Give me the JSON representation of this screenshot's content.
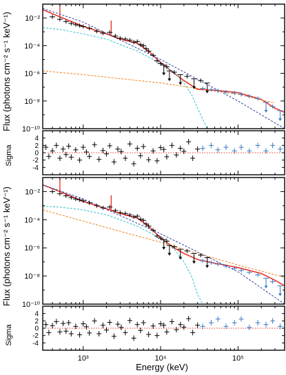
{
  "figure": {
    "xlabel": "Energy (keV)",
    "ylabel_flux": "Flux (photons cm⁻² s⁻¹ keV⁻¹)",
    "ylabel_sigma": "Sigma",
    "x_tick_labels": [
      "10³",
      "10⁴",
      "10⁵"
    ],
    "flux_tick_labels": [
      "10⁻²",
      "10⁻⁴",
      "10⁻⁶",
      "10⁻⁸",
      "10⁻¹⁰"
    ],
    "sigma_tick_labels": [
      "4",
      "2",
      "0",
      "-2",
      "-4"
    ]
  },
  "colors": {
    "total_model": "#e8332a",
    "data_black": "#000000",
    "data_blue": "#3a78c2",
    "cyan_component": "#2bbfcf",
    "blue_component": "#2d3fa3",
    "orange_component": "#f07f1a",
    "zero_line": "#e8332a"
  },
  "chart_data": [
    {
      "type": "line",
      "panel": "top",
      "x_scale": "log",
      "y_scale": "log",
      "xlim": [
        300,
        400000
      ],
      "ylim": [
        1e-10,
        0.1
      ],
      "grid": false,
      "series": [
        {
          "role": "data",
          "color": "black",
          "x": [
            400,
            500,
            600,
            700,
            800,
            900,
            1000,
            1200,
            1500,
            1800,
            2200,
            2600,
            3000,
            3500,
            4000,
            4500,
            5000,
            5500,
            6000,
            6500,
            7000,
            8000,
            9000,
            10000,
            11000,
            12000,
            13000,
            15000,
            18000,
            22000,
            27000,
            33000,
            40000
          ],
          "y": [
            0.012,
            0.008,
            0.0055,
            0.004,
            0.0033,
            0.0028,
            0.0024,
            0.0018,
            0.0011,
            0.0008,
            0.0009,
            0.0005,
            0.00035,
            0.0003,
            0.00025,
            0.00018,
            0.0002,
            0.00012,
            0.0001,
            6e-05,
            4e-05,
            2e-05,
            8e-06,
            5e-06,
            4e-06,
            3e-06,
            1.5e-06,
            1.2e-06,
            8e-07,
            6e-07,
            4e-07,
            3e-07,
            2e-07
          ],
          "upper_limit_from_x": 10000
        },
        {
          "role": "data",
          "color": "blue",
          "x": [
            35000,
            45000,
            55000,
            70000,
            90000,
            110000,
            140000,
            180000,
            230000,
            280000,
            350000
          ],
          "y": [
            8e-08,
            6.5e-08,
            5.5e-08,
            4.5e-08,
            3.8e-08,
            3e-08,
            2.2e-08,
            1.5e-08,
            8e-09,
            4e-09,
            2e-09
          ],
          "upper_limits_at_x": [
            230000,
            350000
          ]
        },
        {
          "role": "total model",
          "color": "red",
          "x": [
            300,
            500,
            1000,
            2000,
            3000,
            5000,
            7000,
            10000,
            15000,
            20000,
            30000,
            50000,
            100000,
            200000,
            300000,
            400000
          ],
          "y": [
            0.04,
            0.012,
            0.0025,
            0.0007,
            0.0003,
            0.00015,
            4e-05,
            6e-06,
            1e-06,
            3e-07,
            7e-08,
            6e-08,
            4e-08,
            1.3e-08,
            3e-09,
            1.5e-09
          ],
          "emission_lines_at_x": [
            500,
            2300
          ]
        },
        {
          "role": "component",
          "color": "cyan",
          "x": [
            300,
            500,
            1000,
            2000,
            3000,
            5000,
            8000,
            10000,
            15000,
            20000,
            25000,
            30000,
            40000
          ],
          "y": [
            0.002,
            0.0015,
            0.0007,
            0.0003,
            0.00012,
            4e-05,
            1e-05,
            5e-06,
            1.2e-06,
            2e-07,
            3e-08,
            3e-09,
            1e-10
          ]
        },
        {
          "role": "component",
          "color": "blue",
          "x": [
            300,
            1000,
            10000,
            100000,
            400000
          ],
          "y": [
            0.05,
            0.005,
            1e-05,
            1e-08,
            1e-10
          ]
        },
        {
          "role": "component",
          "color": "orange",
          "x": [
            300,
            1000,
            10000,
            30000,
            100000,
            300000
          ],
          "y": [
            1.5e-06,
            8e-07,
            2e-07,
            8e-08,
            3e-08,
            7e-09
          ]
        }
      ]
    },
    {
      "type": "scatter",
      "panel": "top residuals",
      "x_scale": "log",
      "xlim": [
        300,
        400000
      ],
      "ylim": [
        -6,
        6
      ],
      "zero_line": 0,
      "series": [
        {
          "color": "black",
          "x": [
            330,
            360,
            400,
            450,
            500,
            550,
            600,
            650,
            700,
            800,
            900,
            1000,
            1100,
            1200,
            1400,
            1600,
            1800,
            2000,
            2200,
            2500,
            2800,
            3100,
            3500,
            4000,
            4500,
            5000,
            5500,
            6000,
            7000,
            8000,
            9000,
            10000,
            11000,
            12000,
            14000,
            16000,
            18000,
            20000,
            23000,
            26000,
            30000
          ],
          "y": [
            1.5,
            -1,
            0.5,
            2,
            -1.5,
            1,
            -0.5,
            1.8,
            -1.2,
            0.8,
            -2,
            1.5,
            0.2,
            -1,
            2.2,
            -1.8,
            0.6,
            -0.3,
            1.9,
            -2.5,
            1,
            0.3,
            -1.5,
            2.4,
            -3,
            1.2,
            -0.8,
            1.7,
            -1.9,
            0.5,
            -2.2,
            1.4,
            0.9,
            -1.1,
            2,
            -0.6,
            1.2,
            0.4,
            3,
            -1.5,
            1
          ]
        },
        {
          "color": "blue",
          "x": [
            35000,
            45000,
            55000,
            70000,
            90000,
            110000,
            140000,
            180000,
            230000,
            280000,
            350000
          ],
          "y": [
            1.2,
            2,
            0.8,
            1.5,
            0.5,
            1.5,
            0.5,
            2,
            0.5,
            2,
            1
          ]
        }
      ]
    },
    {
      "type": "line",
      "panel": "bottom",
      "x_scale": "log",
      "y_scale": "log",
      "xlim": [
        300,
        400000
      ],
      "ylim": [
        1e-10,
        0.1
      ],
      "grid": false,
      "series": [
        {
          "role": "data",
          "color": "black",
          "x": [
            400,
            500,
            600,
            700,
            800,
            900,
            1000,
            1200,
            1500,
            1800,
            2200,
            2600,
            3000,
            3500,
            4000,
            4500,
            5000,
            5500,
            6000,
            6500,
            7000,
            8000,
            9000,
            10000,
            11000,
            12000,
            13000,
            15000,
            18000,
            22000,
            27000,
            33000,
            40000
          ],
          "y": [
            0.01,
            0.007,
            0.005,
            0.0038,
            0.003,
            0.0026,
            0.0022,
            0.0016,
            0.001,
            0.0007,
            0.0008,
            0.00045,
            0.00032,
            0.00028,
            0.00022,
            0.00016,
            0.00018,
            0.00011,
            9e-05,
            5e-05,
            3.5e-05,
            1.8e-05,
            7e-06,
            5e-06,
            4e-06,
            3e-06,
            1.5e-06,
            1.2e-06,
            8e-07,
            6e-07,
            4e-07,
            3e-07,
            2e-07
          ],
          "upper_limit_from_x": 10000
        },
        {
          "role": "data",
          "color": "blue",
          "x": [
            35000,
            45000,
            55000,
            70000,
            90000,
            110000,
            140000,
            180000,
            230000,
            280000,
            350000
          ],
          "y": [
            1.2e-07,
            9e-08,
            7e-08,
            5e-08,
            3.5e-08,
            2.5e-08,
            1.8e-08,
            1.2e-08,
            7e-09,
            4e-09,
            2e-09
          ],
          "upper_limits_at_x": [
            230000,
            350000
          ]
        },
        {
          "role": "total model",
          "color": "red",
          "x": [
            300,
            500,
            1000,
            2000,
            3000,
            5000,
            7000,
            10000,
            15000,
            20000,
            30000,
            50000,
            100000,
            200000,
            300000,
            400000
          ],
          "y": [
            0.03,
            0.01,
            0.002,
            0.0006,
            0.00028,
            0.00013,
            3.5e-05,
            5e-06,
            1e-06,
            4e-07,
            1.5e-07,
            8e-08,
            4e-08,
            1.5e-08,
            5e-09,
            2e-09
          ],
          "emission_lines_at_x": [
            500,
            2300
          ]
        },
        {
          "role": "component",
          "color": "cyan",
          "x": [
            300,
            500,
            1000,
            2000,
            3000,
            5000,
            8000,
            10000,
            15000,
            20000,
            25000,
            30000,
            35000
          ],
          "y": [
            0.0009,
            0.0008,
            0.0005,
            0.00022,
            0.0001,
            3.5e-05,
            9e-06,
            4e-06,
            8e-07,
            1e-07,
            1e-08,
            5e-10,
            1e-10
          ]
        },
        {
          "role": "component",
          "color": "blue",
          "x": [
            300,
            1000,
            10000,
            100000,
            400000
          ],
          "y": [
            0.03,
            0.003,
            1e-05,
            2e-08,
            1e-10
          ]
        },
        {
          "role": "component",
          "color": "orange",
          "x": [
            300,
            1000,
            3000,
            10000,
            30000,
            100000,
            400000
          ],
          "y": [
            0.0005,
            8e-05,
            1.5e-05,
            2.5e-06,
            4e-07,
            6e-08,
            8e-09
          ]
        }
      ]
    },
    {
      "type": "scatter",
      "panel": "bottom residuals",
      "x_scale": "log",
      "xlim": [
        300,
        400000
      ],
      "ylim": [
        -6,
        6
      ],
      "zero_line": 0,
      "series": [
        {
          "color": "black",
          "x": [
            330,
            360,
            400,
            450,
            500,
            550,
            600,
            650,
            700,
            800,
            900,
            1000,
            1100,
            1200,
            1400,
            1600,
            1800,
            2000,
            2200,
            2500,
            2800,
            3100,
            3500,
            4000,
            4500,
            5000,
            5500,
            6000,
            7000,
            8000,
            9000,
            10000,
            11000,
            12000,
            14000,
            16000,
            18000,
            20000,
            23000,
            26000,
            30000
          ],
          "y": [
            1,
            -1.2,
            0.7,
            1.8,
            -1,
            1.3,
            -0.8,
            1.5,
            -1.5,
            0.5,
            -1.8,
            1.2,
            0.4,
            -1.3,
            2,
            -1.5,
            0.8,
            -0.5,
            1.6,
            -2.2,
            1.1,
            0.2,
            -1.2,
            2.1,
            -2.7,
            1,
            -0.6,
            1.5,
            -1.7,
            0.6,
            -2,
            1.2,
            0.8,
            -1,
            1.8,
            -0.4,
            1,
            0.3,
            2.6,
            -1.2,
            0.8
          ]
        },
        {
          "color": "blue",
          "x": [
            35000,
            45000,
            55000,
            70000,
            90000,
            110000,
            140000,
            180000,
            230000,
            280000,
            350000
          ],
          "y": [
            0.5,
            1.5,
            2.5,
            0.5,
            1.5,
            2.5,
            0.2,
            1.5,
            1,
            2,
            0.5
          ]
        }
      ]
    }
  ]
}
